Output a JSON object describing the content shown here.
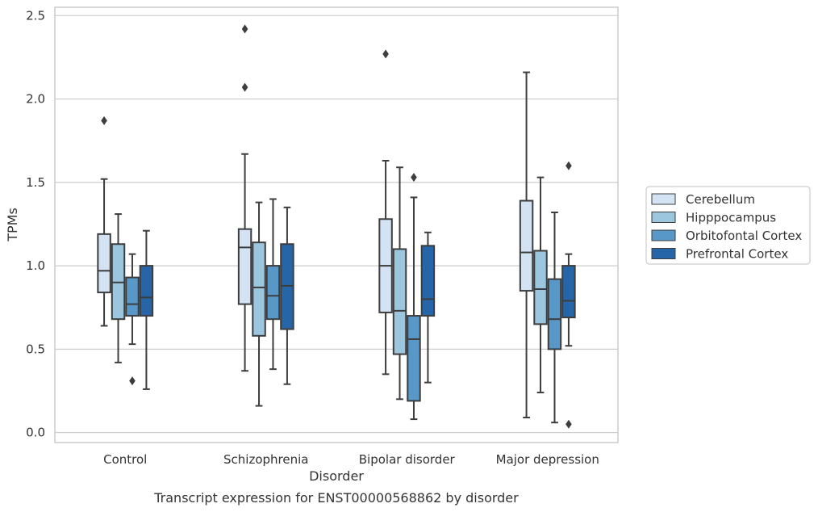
{
  "chart_data": {
    "type": "box",
    "caption": "Transcript expression for ENST00000568862 by disorder",
    "xlabel": "Disorder",
    "ylabel": "TPMs",
    "ylim": [
      -0.06,
      2.55
    ],
    "yticks": [
      "0.0",
      "0.5",
      "1.0",
      "1.5",
      "2.0",
      "2.5"
    ],
    "grid": "horizontal",
    "legend_position": "right",
    "categories": [
      "Control",
      "Schizophrenia",
      "Bipolar disorder",
      "Major depression"
    ],
    "series": [
      {
        "name": "Cerebellum",
        "color": "#d4e3f3",
        "boxes": [
          {
            "whislo": 0.64,
            "q1": 0.84,
            "med": 0.97,
            "q3": 1.19,
            "whishi": 1.52,
            "fliers": [
              1.87
            ]
          },
          {
            "whislo": 0.37,
            "q1": 0.77,
            "med": 1.11,
            "q3": 1.22,
            "whishi": 1.67,
            "fliers": [
              2.07,
              2.42
            ]
          },
          {
            "whislo": 0.35,
            "q1": 0.72,
            "med": 1.0,
            "q3": 1.28,
            "whishi": 1.63,
            "fliers": [
              2.27
            ]
          },
          {
            "whislo": 0.09,
            "q1": 0.85,
            "med": 1.08,
            "q3": 1.39,
            "whishi": 2.16,
            "fliers": []
          }
        ]
      },
      {
        "name": "Hipppocampus",
        "color": "#9cc5de",
        "boxes": [
          {
            "whislo": 0.42,
            "q1": 0.68,
            "med": 0.9,
            "q3": 1.13,
            "whishi": 1.31,
            "fliers": []
          },
          {
            "whislo": 0.16,
            "q1": 0.58,
            "med": 0.87,
            "q3": 1.14,
            "whishi": 1.38,
            "fliers": []
          },
          {
            "whislo": 0.2,
            "q1": 0.47,
            "med": 0.73,
            "q3": 1.1,
            "whishi": 1.59,
            "fliers": []
          },
          {
            "whislo": 0.24,
            "q1": 0.65,
            "med": 0.86,
            "q3": 1.09,
            "whishi": 1.53,
            "fliers": []
          }
        ]
      },
      {
        "name": "Orbitofontal Cortex",
        "color": "#5798c8",
        "boxes": [
          {
            "whislo": 0.53,
            "q1": 0.7,
            "med": 0.77,
            "q3": 0.93,
            "whishi": 1.07,
            "fliers": [
              0.31
            ]
          },
          {
            "whislo": 0.38,
            "q1": 0.68,
            "med": 0.82,
            "q3": 1.0,
            "whishi": 1.4,
            "fliers": []
          },
          {
            "whislo": 0.08,
            "q1": 0.19,
            "med": 0.56,
            "q3": 0.7,
            "whishi": 1.41,
            "fliers": [
              1.53
            ]
          },
          {
            "whislo": 0.06,
            "q1": 0.5,
            "med": 0.68,
            "q3": 0.92,
            "whishi": 1.32,
            "fliers": []
          }
        ]
      },
      {
        "name": "Prefrontal Cortex",
        "color": "#2666a8",
        "boxes": [
          {
            "whislo": 0.26,
            "q1": 0.7,
            "med": 0.81,
            "q3": 1.0,
            "whishi": 1.21,
            "fliers": []
          },
          {
            "whislo": 0.29,
            "q1": 0.62,
            "med": 0.88,
            "q3": 1.13,
            "whishi": 1.35,
            "fliers": []
          },
          {
            "whislo": 0.3,
            "q1": 0.7,
            "med": 0.8,
            "q3": 1.12,
            "whishi": 1.2,
            "fliers": []
          },
          {
            "whislo": 0.52,
            "q1": 0.69,
            "med": 0.79,
            "q3": 1.0,
            "whishi": 1.07,
            "fliers": [
              0.05,
              1.6
            ]
          }
        ]
      }
    ]
  }
}
